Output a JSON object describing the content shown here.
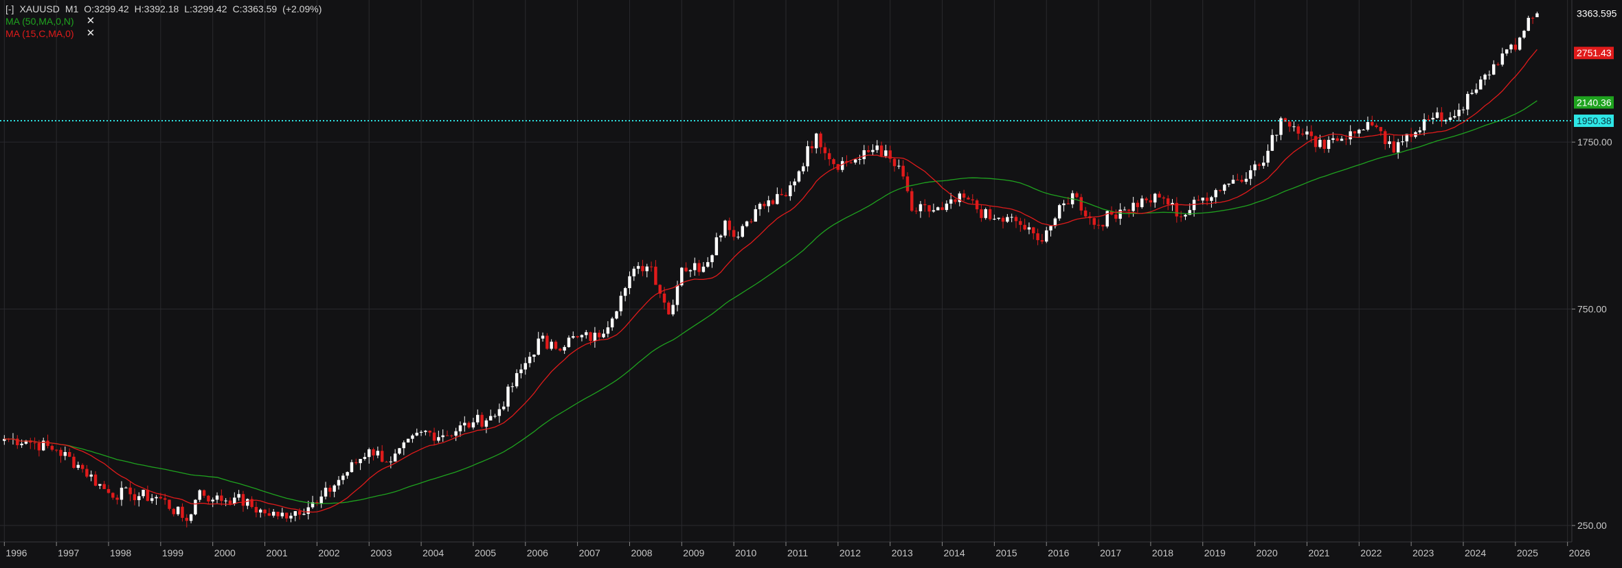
{
  "header": {
    "collapse": "[-]",
    "symbol": "XAUUSD",
    "timeframe": "M1",
    "open": "O:3299.42",
    "high": "H:3392.18",
    "low": "L:3299.42",
    "close": "C:3363.59",
    "change": "(+2.09%)"
  },
  "indicators": [
    {
      "label": "MA (50,MA,0,N)",
      "color": "#1fa31f",
      "close": "✕"
    },
    {
      "label": "MA (15,C,MA,0)",
      "color": "#e01b1b",
      "close": "✕"
    }
  ],
  "price_tags": {
    "last": "3363.595",
    "ma15": "2751.43",
    "ma50": "2140.36",
    "hline": "1950.38"
  },
  "chart_data": {
    "type": "candlestick",
    "scale": "log",
    "ylim": [
      230,
      3600
    ],
    "y_ticks": [
      "250.00",
      "750.00",
      "1750.00"
    ],
    "y_tick_values": [
      250,
      750,
      1750
    ],
    "x_ticks": [
      "1996",
      "1997",
      "1998",
      "1999",
      "2000",
      "2001",
      "2002",
      "2003",
      "2004",
      "2005",
      "2006",
      "2007",
      "2008",
      "2009",
      "2010",
      "2011",
      "2012",
      "2013",
      "2014",
      "2015",
      "2016",
      "2017",
      "2018",
      "2019",
      "2020",
      "2021",
      "2022",
      "2023",
      "2024",
      "2025",
      "2026"
    ],
    "x_range": [
      "1995-12",
      "2026-02"
    ],
    "horizontal_line": {
      "value": 1950.38,
      "color": "#2ee6e6",
      "style": "dotted"
    },
    "colors": {
      "bull": "#ffffff",
      "bear": "#e01b1b",
      "ma15": "#e01b1b",
      "ma50": "#1fa31f",
      "grid": "#2a2a2e"
    },
    "anchors": [
      [
        "1996-01",
        388
      ],
      [
        "1996-06",
        385
      ],
      [
        "1997-01",
        367
      ],
      [
        "1997-06",
        340
      ],
      [
        "1998-01",
        295
      ],
      [
        "1998-06",
        293
      ],
      [
        "1999-01",
        287
      ],
      [
        "1999-07",
        256
      ],
      [
        "1999-10",
        299
      ],
      [
        "2000-01",
        285
      ],
      [
        "2000-06",
        288
      ],
      [
        "2001-01",
        266
      ],
      [
        "2001-04",
        262
      ],
      [
        "2002-01",
        280
      ],
      [
        "2002-06",
        315
      ],
      [
        "2003-01",
        368
      ],
      [
        "2003-06",
        346
      ],
      [
        "2004-01",
        402
      ],
      [
        "2004-06",
        395
      ],
      [
        "2005-01",
        422
      ],
      [
        "2005-06",
        436
      ],
      [
        "2006-01",
        570
      ],
      [
        "2006-05",
        655
      ],
      [
        "2006-06",
        613
      ],
      [
        "2007-01",
        650
      ],
      [
        "2007-06",
        650
      ],
      [
        "2007-12",
        834
      ],
      [
        "2008-03",
        933
      ],
      [
        "2008-06",
        930
      ],
      [
        "2008-10",
        730
      ],
      [
        "2009-01",
        925
      ],
      [
        "2009-06",
        930
      ],
      [
        "2009-11",
        1175
      ],
      [
        "2010-01",
        1082
      ],
      [
        "2010-06",
        1245
      ],
      [
        "2011-01",
        1330
      ],
      [
        "2011-08",
        1828
      ],
      [
        "2011-12",
        1565
      ],
      [
        "2012-06",
        1605
      ],
      [
        "2012-10",
        1720
      ],
      [
        "2013-04",
        1470
      ],
      [
        "2013-06",
        1235
      ],
      [
        "2014-01",
        1240
      ],
      [
        "2014-06",
        1320
      ],
      [
        "2014-12",
        1183
      ],
      [
        "2015-06",
        1172
      ],
      [
        "2015-11",
        1064
      ],
      [
        "2016-01",
        1118
      ],
      [
        "2016-07",
        1350
      ],
      [
        "2016-12",
        1150
      ],
      [
        "2017-06",
        1242
      ],
      [
        "2017-12",
        1303
      ],
      [
        "2018-04",
        1315
      ],
      [
        "2018-08",
        1200
      ],
      [
        "2019-01",
        1320
      ],
      [
        "2019-06",
        1410
      ],
      [
        "2019-12",
        1517
      ],
      [
        "2020-03",
        1577
      ],
      [
        "2020-07",
        1975
      ],
      [
        "2021-01",
        1847
      ],
      [
        "2021-03",
        1707
      ],
      [
        "2021-06",
        1770
      ],
      [
        "2021-12",
        1829
      ],
      [
        "2022-03",
        1937
      ],
      [
        "2022-09",
        1660
      ],
      [
        "2022-12",
        1824
      ],
      [
        "2023-05",
        1963
      ],
      [
        "2023-10",
        1983
      ],
      [
        "2023-12",
        2062
      ],
      [
        "2024-04",
        2286
      ],
      [
        "2024-10",
        2744
      ],
      [
        "2025-01",
        2798
      ],
      [
        "2025-04",
        3288
      ],
      [
        "2025-06",
        3363
      ]
    ],
    "last_candle": {
      "date": "2025-06",
      "open": 3299.42,
      "high": 3392.18,
      "low": 3299.42,
      "close": 3363.59
    }
  }
}
